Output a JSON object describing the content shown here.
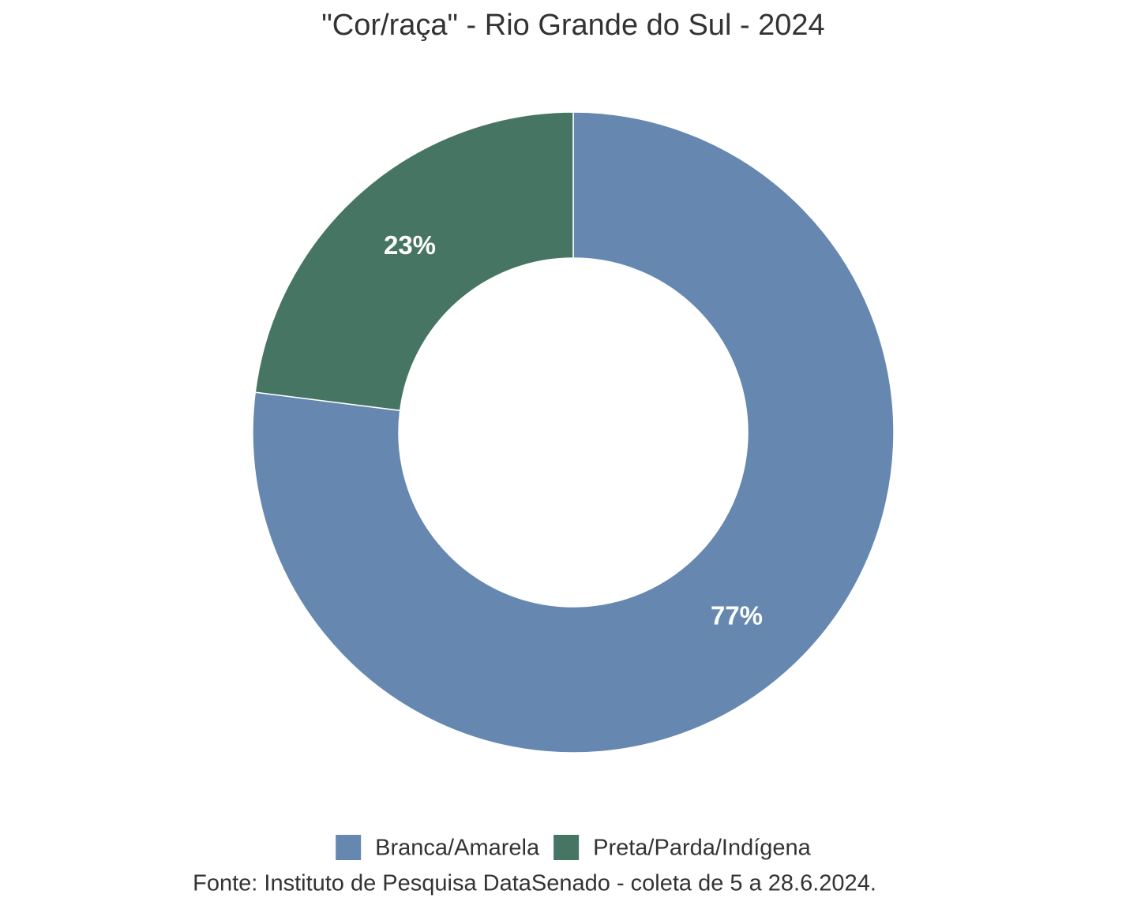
{
  "chart_data": {
    "type": "donut",
    "title": "\"Cor/raça\" - Rio Grande do Sul - 2024",
    "categories": [
      "Branca/Amarela",
      "Preta/Parda/Indígena"
    ],
    "values": [
      77,
      23
    ],
    "value_labels": [
      "77%",
      "23%"
    ],
    "colors": [
      "#6688b0",
      "#467563"
    ],
    "caption": "Fonte: Instituto de Pesquisa DataSenado - coleta de 5 a 28.6.2024."
  }
}
